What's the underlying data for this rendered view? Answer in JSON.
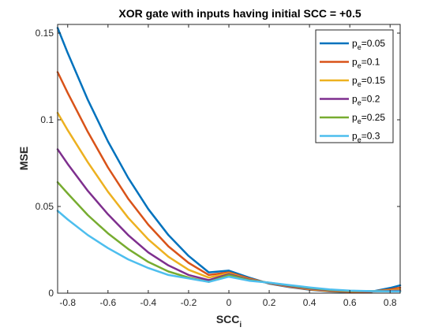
{
  "chart_data": {
    "type": "line",
    "title": "XOR gate with inputs having initial SCC = +0.5",
    "xlabel": {
      "main": "SCC",
      "sub": "i"
    },
    "ylabel": "MSE",
    "xlim": [
      -0.85,
      0.85
    ],
    "ylim": [
      0,
      0.155
    ],
    "xticks": [
      -0.8,
      -0.6,
      -0.4,
      -0.2,
      0,
      0.2,
      0.4,
      0.6,
      0.8
    ],
    "xtick_labels": [
      "-0.8",
      "-0.6",
      "-0.4",
      "-0.2",
      "0",
      "0.2",
      "0.4",
      "0.6",
      "0.8"
    ],
    "yticks": [
      0,
      0.05,
      0.1,
      0.15
    ],
    "ytick_labels": [
      "0",
      "0.05",
      "0.1",
      "0.15"
    ],
    "grid": false,
    "legend_position": "top-right",
    "x": [
      -0.85,
      -0.8,
      -0.7,
      -0.6,
      -0.5,
      -0.4,
      -0.3,
      -0.2,
      -0.1,
      0,
      0.1,
      0.2,
      0.3,
      0.4,
      0.5,
      0.6,
      0.7,
      0.8,
      0.85
    ],
    "series": [
      {
        "name_main": "p",
        "name_sub": "e",
        "name_rest": "=0.05",
        "color": "#0072BD",
        "values": [
          0.153,
          0.1385,
          0.1115,
          0.0875,
          0.0665,
          0.0485,
          0.0335,
          0.0215,
          0.012,
          0.013,
          0.009,
          0.0055,
          0.0035,
          0.002,
          0.001,
          0.0006,
          0.0007,
          0.003,
          0.0045
        ]
      },
      {
        "name_main": "p",
        "name_sub": "e",
        "name_rest": "=0.1",
        "color": "#D95319",
        "values": [
          0.1275,
          0.1155,
          0.093,
          0.0725,
          0.0545,
          0.0395,
          0.027,
          0.0175,
          0.0105,
          0.012,
          0.0085,
          0.0057,
          0.0037,
          0.0022,
          0.0012,
          0.0008,
          0.0008,
          0.0022,
          0.0032
        ]
      },
      {
        "name_main": "p",
        "name_sub": "e",
        "name_rest": "=0.15",
        "color": "#EDB120",
        "values": [
          0.104,
          0.094,
          0.0755,
          0.0585,
          0.0435,
          0.031,
          0.021,
          0.0135,
          0.009,
          0.0115,
          0.008,
          0.0058,
          0.0039,
          0.0024,
          0.0014,
          0.001,
          0.001,
          0.0016,
          0.0022
        ]
      },
      {
        "name_main": "p",
        "name_sub": "e",
        "name_rest": "=0.2",
        "color": "#7E2F8E",
        "values": [
          0.083,
          0.0745,
          0.059,
          0.0455,
          0.0335,
          0.0235,
          0.016,
          0.0105,
          0.0075,
          0.011,
          0.0078,
          0.0059,
          0.0041,
          0.0027,
          0.0017,
          0.0012,
          0.0011,
          0.0013,
          0.0015
        ]
      },
      {
        "name_main": "p",
        "name_sub": "e",
        "name_rest": "=0.25",
        "color": "#77AC30",
        "values": [
          0.064,
          0.0575,
          0.045,
          0.0345,
          0.0255,
          0.018,
          0.0125,
          0.009,
          0.0065,
          0.0105,
          0.0075,
          0.006,
          0.0044,
          0.003,
          0.0019,
          0.0013,
          0.0012,
          0.0011,
          0.0011
        ]
      },
      {
        "name_main": "p",
        "name_sub": "e",
        "name_rest": "=0.3",
        "color": "#4DBEEE",
        "values": [
          0.0475,
          0.0425,
          0.0335,
          0.026,
          0.0195,
          0.0145,
          0.0105,
          0.0085,
          0.0065,
          0.0095,
          0.0072,
          0.0061,
          0.0047,
          0.0033,
          0.0022,
          0.0015,
          0.0012,
          0.001,
          0.001
        ]
      }
    ]
  }
}
